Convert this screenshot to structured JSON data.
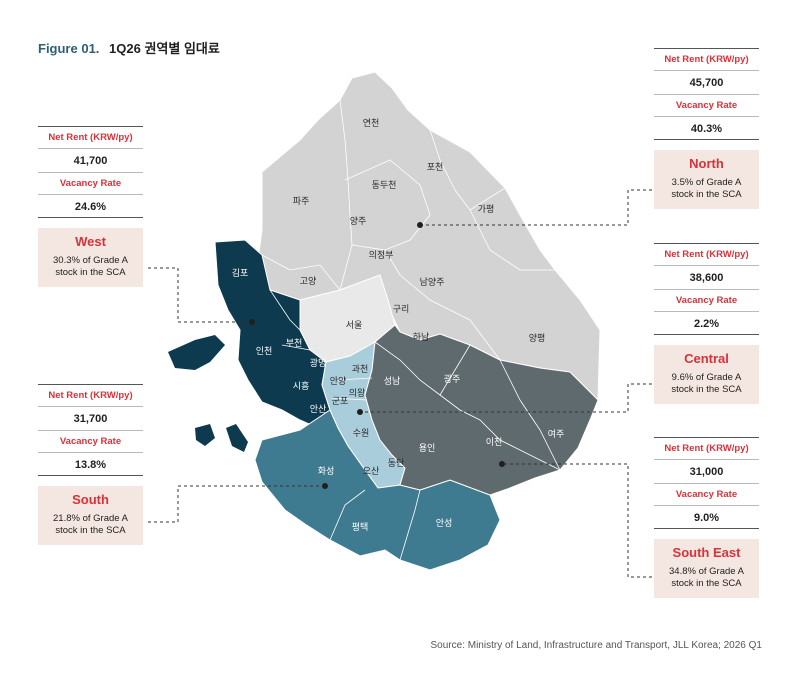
{
  "figure": {
    "label": "Figure 01.",
    "title": "1Q26 권역별 임대료"
  },
  "source": "Source: Ministry of Land, Infrastructure and Transport, JLL Korea; 2026 Q1",
  "colors": {
    "north": "#d3d3d3",
    "central": "#e9e9e9",
    "west": "#0d3a4e",
    "southwest_core": "#a9cddb",
    "south": "#3f7b90",
    "southeast": "#5f6a6e",
    "accent_red": "#d8323a",
    "card_bg": "#f4e6e1"
  },
  "cards": {
    "west": {
      "rent_label": "Net Rent (KRW/py)",
      "rent": "41,700",
      "vacancy_label": "Vacancy Rate",
      "vacancy": "24.6%",
      "name": "West",
      "desc": "30.3% of Grade A stock in the SCA"
    },
    "south": {
      "rent_label": "Net Rent (KRW/py)",
      "rent": "31,700",
      "vacancy_label": "Vacancy Rate",
      "vacancy": "13.8%",
      "name": "South",
      "desc": "21.8% of Grade A stock in the SCA"
    },
    "north": {
      "rent_label": "Net Rent (KRW/py)",
      "rent": "45,700",
      "vacancy_label": "Vacancy Rate",
      "vacancy": "40.3%",
      "name": "North",
      "desc": "3.5% of Grade A stock in the SCA"
    },
    "central": {
      "rent_label": "Net Rent (KRW/py)",
      "rent": "38,600",
      "vacancy_label": "Vacancy Rate",
      "vacancy": "2.2%",
      "name": "Central",
      "desc": "9.6% of Grade A stock in the SCA"
    },
    "southeast": {
      "rent_label": "Net Rent (KRW/py)",
      "rent": "31,000",
      "vacancy_label": "Vacancy Rate",
      "vacancy": "9.0%",
      "name": "South East",
      "desc": "34.8% of Grade A stock in the SCA"
    }
  },
  "cities": {
    "yeoncheon": "연천",
    "pocheon": "포천",
    "dongducheon": "동두천",
    "paju": "파주",
    "gapyeong": "가평",
    "yangju": "양주",
    "uijeongbu": "의정부",
    "gimpo": "김포",
    "goyang": "고양",
    "namyangju": "남양주",
    "guri": "구리",
    "seoul": "서울",
    "hanam": "하남",
    "yangpyeong": "양평",
    "incheon": "인천",
    "bucheon": "부천",
    "gwangmyeong": "광명",
    "gwacheon": "과천",
    "anyang": "안양",
    "uiwang": "의왕",
    "siheung": "시흥",
    "gunpo": "군포",
    "ansan": "안산",
    "seongnam": "성남",
    "gwangju": "광주",
    "suwon": "수원",
    "yongin": "용인",
    "icheon": "이천",
    "yeoju": "여주",
    "hwaseong": "화성",
    "osan": "오산",
    "dongtan": "동탄",
    "pyeongtaek": "평택",
    "anseong": "안성"
  }
}
